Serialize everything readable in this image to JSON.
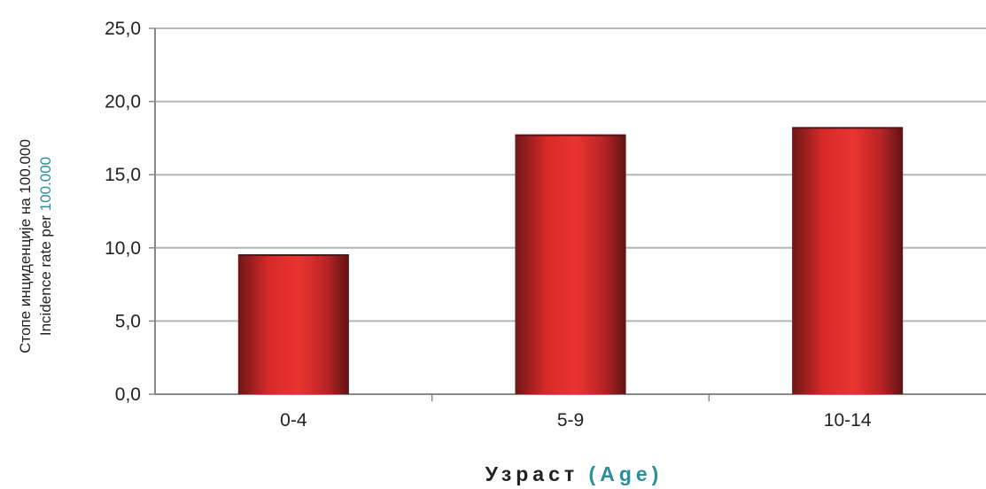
{
  "chart_data": {
    "type": "bar",
    "categories": [
      "0-4",
      "5-9",
      "10-14"
    ],
    "values": [
      9.5,
      17.7,
      18.2
    ],
    "ylim": [
      0,
      25
    ],
    "yticks": [
      "0,0",
      "5,0",
      "10,0",
      "15,0",
      "20,0",
      "25,0"
    ],
    "ylabel_primary": "Стопе инциденције на 100.000",
    "ylabel_secondary_a": "Incidence rate per ",
    "ylabel_secondary_b": "100.000",
    "xlabel_primary": "Узраст",
    "xlabel_secondary": "(Age)",
    "grid": true,
    "colors": {
      "bar_dark": "#7a1a1c",
      "bar_light": "#e8302e",
      "grid": "#b5b5b5",
      "axis": "#888888",
      "text": "#222222",
      "accent": "#2a8f9a"
    }
  }
}
